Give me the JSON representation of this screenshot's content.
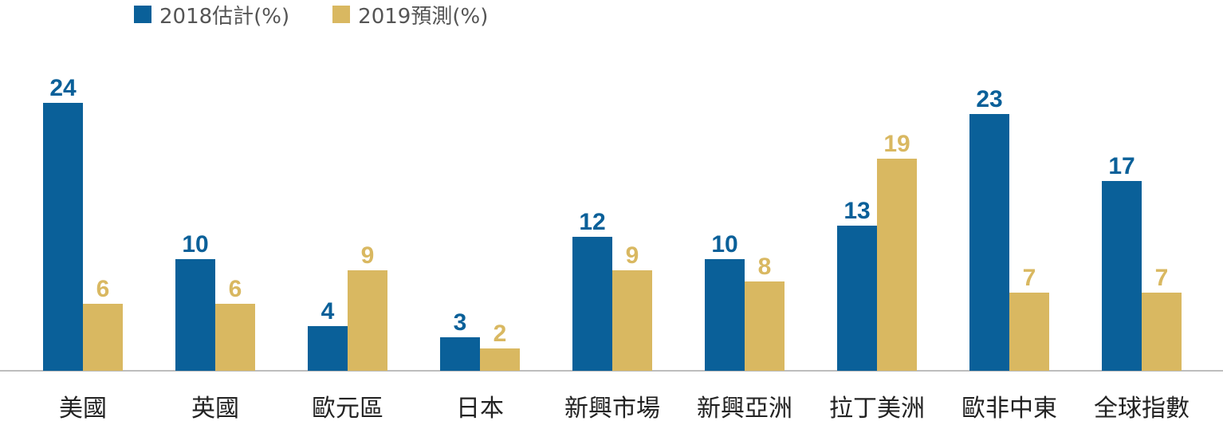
{
  "chart_data": {
    "type": "bar",
    "categories": [
      "美國",
      "英國",
      "歐元區",
      "日本",
      "新興市場",
      "新興亞洲",
      "拉丁美洲",
      "歐非中東",
      "全球指數"
    ],
    "series": [
      {
        "name": "2018估計(%)",
        "values": [
          24,
          10,
          4,
          3,
          12,
          10,
          13,
          23,
          17
        ],
        "color": "#0a6099"
      },
      {
        "name": "2019預測(%)",
        "values": [
          6,
          6,
          9,
          2,
          9,
          8,
          19,
          7,
          7
        ],
        "color": "#d9b861"
      }
    ],
    "title": "",
    "xlabel": "",
    "ylabel": "",
    "ylim": [
      0,
      25
    ],
    "grid": false,
    "legend": "top-left",
    "data_labels": true,
    "baseline_color": "#bdbdbd"
  }
}
